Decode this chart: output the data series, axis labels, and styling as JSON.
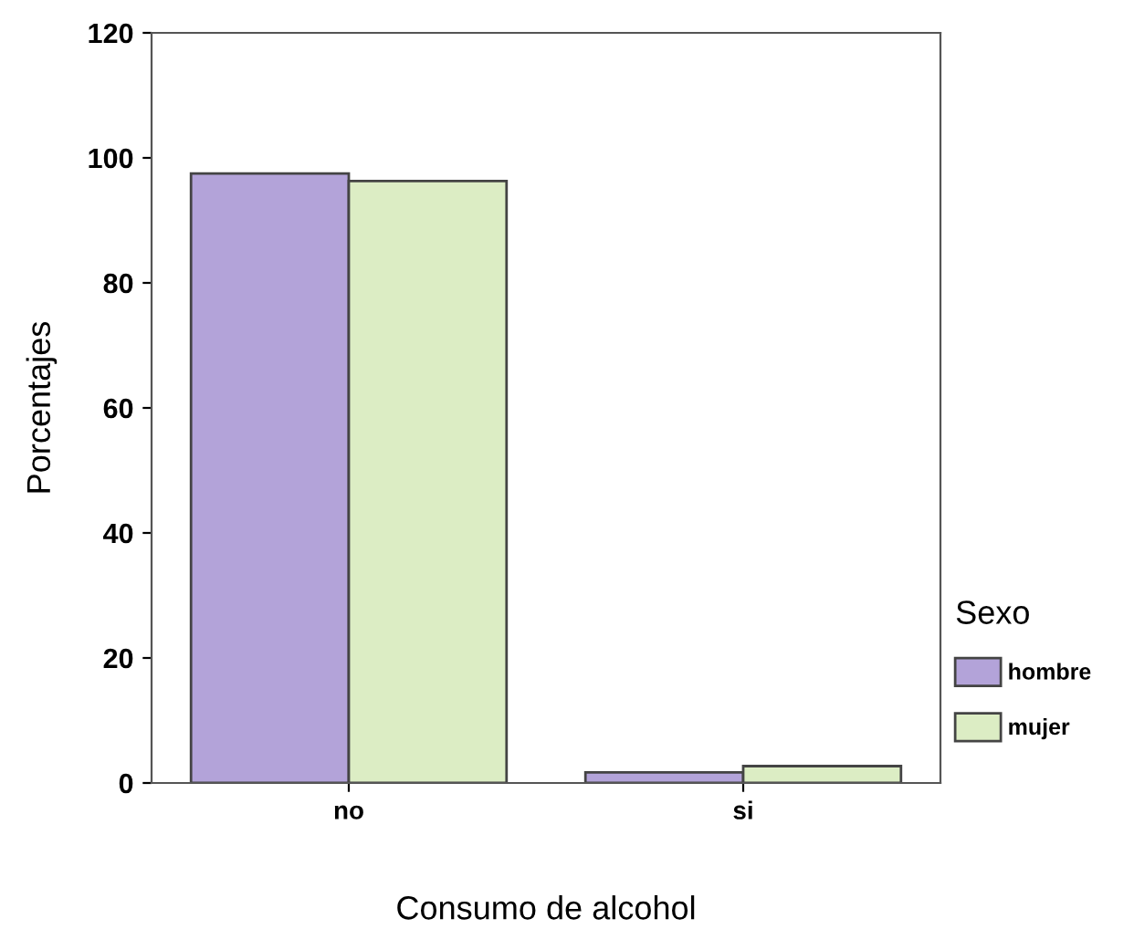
{
  "chart_data": {
    "type": "bar",
    "xlabel": "Consumo de alcohol",
    "ylabel": "Porcentajes",
    "legend_title": "Sexo",
    "categories": [
      "no",
      "si"
    ],
    "series": [
      {
        "name": "hombre",
        "color": "#b3a3d9",
        "values": [
          97.5,
          1.7
        ]
      },
      {
        "name": "mujer",
        "color": "#dcedc4",
        "values": [
          96.3,
          2.7
        ]
      }
    ],
    "ylim": [
      0,
      120
    ],
    "yticks": [
      0,
      20,
      40,
      60,
      80,
      100,
      120
    ],
    "grid": false,
    "legend": "right"
  }
}
